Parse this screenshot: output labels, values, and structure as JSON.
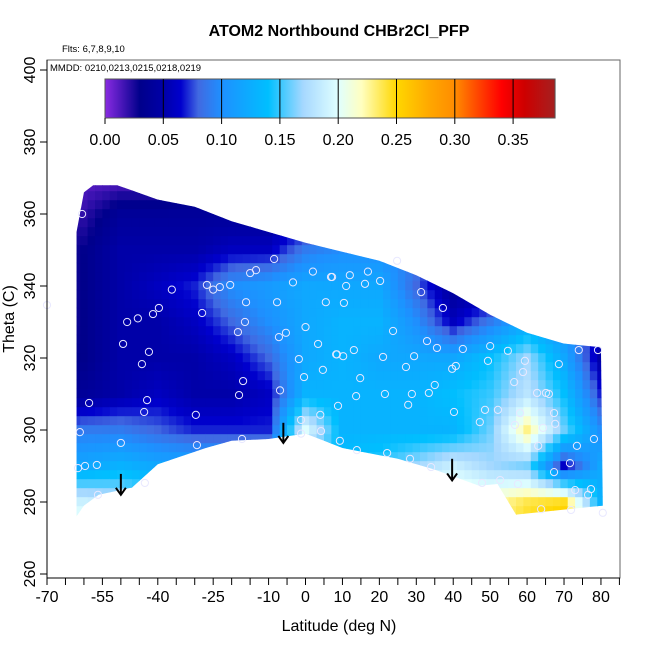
{
  "chart_data": {
    "type": "heatmap",
    "title": "ATOM2 Northbound CHBr2Cl_PFP",
    "annotations": [
      "Flts: 6,7,8,9,10",
      "MMDD: 0210,0213,0215,0218,0219"
    ],
    "xlabel": "Latitude (deg N)",
    "ylabel": "Theta (C)",
    "xlim": [
      -70,
      85
    ],
    "ylim": [
      260,
      400
    ],
    "x_ticks": [
      -70,
      -65,
      -60,
      -55,
      -50,
      -45,
      -40,
      -35,
      -30,
      -25,
      -20,
      -15,
      -10,
      -5,
      0,
      5,
      10,
      15,
      20,
      25,
      30,
      35,
      40,
      45,
      50,
      55,
      60,
      65,
      70,
      75,
      80,
      85
    ],
    "x_tick_labels": [
      "-70",
      "-55",
      "-40",
      "-25",
      "-10",
      "0",
      "10",
      "20",
      "30",
      "40",
      "50",
      "60",
      "70",
      "80"
    ],
    "x_tick_label_values": [
      -70,
      -55,
      -40,
      -25,
      -10,
      0,
      10,
      20,
      30,
      40,
      50,
      60,
      70,
      80
    ],
    "y_ticks": [
      260,
      280,
      300,
      320,
      340,
      360,
      380,
      400
    ],
    "y_tick_labels": [
      "260",
      "280",
      "300",
      "320",
      "340",
      "360",
      "380",
      "400"
    ],
    "colorbar": {
      "range": [
        0,
        0.386
      ],
      "tick_values": [
        0,
        0.05,
        0.1,
        0.15,
        0.2,
        0.25,
        0.3,
        0.35
      ],
      "tick_labels": [
        "0.00",
        "0.05",
        "0.10",
        "0.15",
        "0.20",
        "0.25",
        "0.30",
        "0.35"
      ],
      "stops": [
        [
          0.0,
          "#8a2be2"
        ],
        [
          0.03,
          "#00008b"
        ],
        [
          0.05,
          "#0000a8"
        ],
        [
          0.065,
          "#0000cd"
        ],
        [
          0.08,
          "#4169e1"
        ],
        [
          0.1,
          "#1e90ff"
        ],
        [
          0.14,
          "#00bfff"
        ],
        [
          0.17,
          "#a6d8ff"
        ],
        [
          0.2,
          "#e0ffff"
        ],
        [
          0.22,
          "#ffffc0"
        ],
        [
          0.25,
          "#ffd700"
        ],
        [
          0.28,
          "#ffa500"
        ],
        [
          0.3,
          "#ff8c00"
        ],
        [
          0.32,
          "#ff4500"
        ],
        [
          0.34,
          "#ff0000"
        ],
        [
          0.36,
          "#cd0000"
        ],
        [
          0.386,
          "#a52020"
        ]
      ]
    },
    "grid_lat": [
      -70,
      -60,
      -50,
      -40,
      -30,
      -20,
      -10,
      0,
      10,
      20,
      30,
      40,
      50,
      60,
      70,
      80
    ],
    "grid_theta": [
      270,
      280,
      290,
      300,
      310,
      320,
      330,
      340,
      350,
      360,
      370
    ],
    "grid_values": [
      [
        0.22,
        0.22,
        0.2,
        0.17,
        0.15,
        0.15,
        0.15,
        0.16,
        0.17,
        0.19,
        0.21,
        0.23,
        0.23,
        0.25,
        0.26,
        0.14
      ],
      [
        0.19,
        0.19,
        0.18,
        0.16,
        0.14,
        0.14,
        0.14,
        0.15,
        0.16,
        0.18,
        0.2,
        0.22,
        0.22,
        0.24,
        0.25,
        0.13
      ],
      [
        0.12,
        0.12,
        0.13,
        0.12,
        0.12,
        0.12,
        0.12,
        0.14,
        0.14,
        0.15,
        0.17,
        0.19,
        0.17,
        0.16,
        0.06,
        0.12
      ],
      [
        0.08,
        0.09,
        0.09,
        0.08,
        0.07,
        0.07,
        0.07,
        0.2,
        0.13,
        0.13,
        0.13,
        0.13,
        0.16,
        0.23,
        0.16,
        0.1
      ],
      [
        0.03,
        0.04,
        0.05,
        0.06,
        0.05,
        0.05,
        0.06,
        0.13,
        0.13,
        0.13,
        0.13,
        0.14,
        0.15,
        0.18,
        0.14,
        0.07
      ],
      [
        0.03,
        0.03,
        0.05,
        0.05,
        0.05,
        0.06,
        0.08,
        0.12,
        0.13,
        0.12,
        0.12,
        0.12,
        0.14,
        0.17,
        0.12,
        0.05
      ],
      [
        0.02,
        0.03,
        0.05,
        0.05,
        0.06,
        0.08,
        0.1,
        0.12,
        0.13,
        0.13,
        0.1,
        0.06,
        0.09,
        0.12,
        0.1,
        0.06
      ],
      [
        0.02,
        0.03,
        0.05,
        0.06,
        0.07,
        0.1,
        0.11,
        0.12,
        0.12,
        0.12,
        0.08,
        0.04,
        0.04,
        0.05,
        0.05,
        0.05
      ],
      [
        0.02,
        0.03,
        0.05,
        0.05,
        0.05,
        0.06,
        0.06,
        0.09,
        0.1,
        0.1,
        0.09,
        0.06,
        0.05,
        0.05,
        0.05,
        0.05
      ],
      [
        0.02,
        0.02,
        0.04,
        0.04,
        0.04,
        0.04,
        0.04,
        0.05,
        0.05,
        0.05,
        0.05,
        0.05,
        0.05,
        0.05,
        0.05,
        0.05
      ],
      [
        0.01,
        0.01,
        0.01,
        0.01,
        0.02,
        0.02,
        0.03,
        0.03,
        0.03,
        0.03,
        0.03,
        0.03,
        0.03,
        0.03,
        0.03,
        0.03
      ]
    ],
    "data_domain": [
      [
        -62,
        276
      ],
      [
        -62,
        355
      ],
      [
        -60,
        366
      ],
      [
        -57.5,
        368
      ],
      [
        -51,
        368
      ],
      [
        -40,
        364
      ],
      [
        -30,
        362
      ],
      [
        -20,
        358
      ],
      [
        -10,
        355
      ],
      [
        0,
        352
      ],
      [
        8,
        350
      ],
      [
        20,
        347
      ],
      [
        30,
        343
      ],
      [
        40,
        338
      ],
      [
        50,
        332
      ],
      [
        60,
        327
      ],
      [
        70,
        324
      ],
      [
        80,
        323
      ],
      [
        80.5,
        279
      ],
      [
        57,
        276.5
      ],
      [
        52,
        285
      ],
      [
        47,
        284.5
      ],
      [
        35,
        289
      ],
      [
        25,
        292
      ],
      [
        15,
        294
      ],
      [
        10,
        295
      ],
      [
        5,
        297
      ],
      [
        0,
        299
      ],
      [
        -10,
        297.5
      ],
      [
        -20,
        297
      ],
      [
        -27,
        295
      ],
      [
        -40,
        290.5
      ],
      [
        -47,
        284
      ],
      [
        -56,
        282
      ],
      [
        -60,
        279
      ]
    ],
    "samples": [
      [
        -60.5,
        360
      ],
      [
        -8.5,
        347.5
      ],
      [
        -13.4,
        344.4
      ],
      [
        -15,
        343.6
      ],
      [
        2,
        344
      ],
      [
        6.9,
        342.5
      ],
      [
        -3.4,
        341
      ],
      [
        -36.2,
        339
      ],
      [
        -26.7,
        340.3
      ],
      [
        -25,
        339
      ],
      [
        -23.2,
        339.7
      ],
      [
        -20.4,
        340.3
      ],
      [
        -16.1,
        335.5
      ],
      [
        -7.7,
        335.5
      ],
      [
        5.5,
        335.5
      ],
      [
        -70,
        334.7
      ],
      [
        -39.7,
        333.9
      ],
      [
        -41.3,
        332.2
      ],
      [
        -28,
        332.5
      ],
      [
        -48.3,
        330
      ],
      [
        -45.4,
        331
      ],
      [
        -16.4,
        330
      ],
      [
        -18.3,
        327.2
      ],
      [
        -7.2,
        325.8
      ],
      [
        -5.3,
        327
      ],
      [
        0,
        328.6
      ],
      [
        -49.4,
        323.9
      ],
      [
        -42.4,
        321.7
      ],
      [
        -44.3,
        318.3
      ],
      [
        3.4,
        323.9
      ],
      [
        -1.8,
        319.7
      ],
      [
        4.7,
        316.7
      ],
      [
        8.3,
        321
      ],
      [
        -16.9,
        313.6
      ],
      [
        -6.9,
        311
      ],
      [
        -18,
        309.7
      ],
      [
        -0.4,
        314.7
      ],
      [
        -58.6,
        307.5
      ],
      [
        -42.9,
        308.3
      ],
      [
        -43.7,
        305
      ],
      [
        -29.7,
        304.2
      ],
      [
        -1.2,
        302.8
      ],
      [
        4,
        304.2
      ],
      [
        -61.1,
        299.4
      ],
      [
        -50,
        296.4
      ],
      [
        -29.4,
        295.8
      ],
      [
        -17.2,
        297.5
      ],
      [
        -1.2,
        299
      ],
      [
        4.2,
        299.7
      ],
      [
        -61.6,
        289.4
      ],
      [
        -59.7,
        290
      ],
      [
        -56.5,
        290.3
      ],
      [
        -43.5,
        285.3
      ],
      [
        -56.2,
        282
      ],
      [
        24.8,
        347
      ],
      [
        12,
        343
      ],
      [
        16.9,
        344
      ],
      [
        7.2,
        342.5
      ],
      [
        11,
        340
      ],
      [
        16.1,
        340.6
      ],
      [
        20.2,
        341.4
      ],
      [
        31.3,
        338.3
      ],
      [
        10.4,
        335.3
      ],
      [
        37.2,
        333.9
      ],
      [
        23.7,
        327.5
      ],
      [
        32.9,
        324.7
      ],
      [
        8.5,
        321
      ],
      [
        10.2,
        320.5
      ],
      [
        13.1,
        322.2
      ],
      [
        21,
        320.3
      ],
      [
        29.4,
        320.5
      ],
      [
        35.6,
        322.8
      ],
      [
        42.6,
        322.5
      ],
      [
        50,
        323.3
      ],
      [
        54.8,
        322
      ],
      [
        59.4,
        319.2
      ],
      [
        27.2,
        317.5
      ],
      [
        39.7,
        317
      ],
      [
        40.7,
        317.8
      ],
      [
        49.4,
        319.2
      ],
      [
        74,
        322.2
      ],
      [
        79.2,
        322.2
      ],
      [
        68.6,
        318.3
      ],
      [
        58.9,
        316.1
      ],
      [
        14.8,
        314.4
      ],
      [
        56.5,
        313.3
      ],
      [
        35,
        312.5
      ],
      [
        13.7,
        309.4
      ],
      [
        21.5,
        310
      ],
      [
        28.8,
        310
      ],
      [
        33.4,
        310.3
      ],
      [
        62.7,
        310.3
      ],
      [
        65.1,
        310.3
      ],
      [
        65.9,
        310
      ],
      [
        8.8,
        306.7
      ],
      [
        27.8,
        307
      ],
      [
        40.2,
        305
      ],
      [
        48.6,
        305.6
      ],
      [
        52.1,
        305.6
      ],
      [
        58.1,
        304.7
      ],
      [
        67.3,
        304.7
      ],
      [
        47.2,
        302.2
      ],
      [
        56.7,
        301.4
      ],
      [
        64.3,
        300.6
      ],
      [
        67.6,
        301.7
      ],
      [
        9.3,
        297
      ],
      [
        78.1,
        297.5
      ],
      [
        63,
        295.6
      ],
      [
        73.5,
        295.6
      ],
      [
        13.9,
        294.4
      ],
      [
        22.1,
        293.6
      ],
      [
        28.3,
        292
      ],
      [
        34,
        289.7
      ],
      [
        71.6,
        290.8
      ],
      [
        67.3,
        288.3
      ],
      [
        47.8,
        285.3
      ],
      [
        52.7,
        286.1
      ],
      [
        57.5,
        285
      ],
      [
        73,
        283.3
      ],
      [
        77.3,
        283.6
      ],
      [
        76.5,
        282
      ],
      [
        63.8,
        278
      ],
      [
        71.9,
        277.8
      ],
      [
        80.5,
        277
      ]
    ],
    "arrows": [
      [
        -50,
        287.8,
        282
      ],
      [
        -6,
        302,
        296.4
      ],
      [
        39.7,
        292,
        286
      ]
    ],
    "grid": false,
    "legend": "top (colorbar)"
  }
}
